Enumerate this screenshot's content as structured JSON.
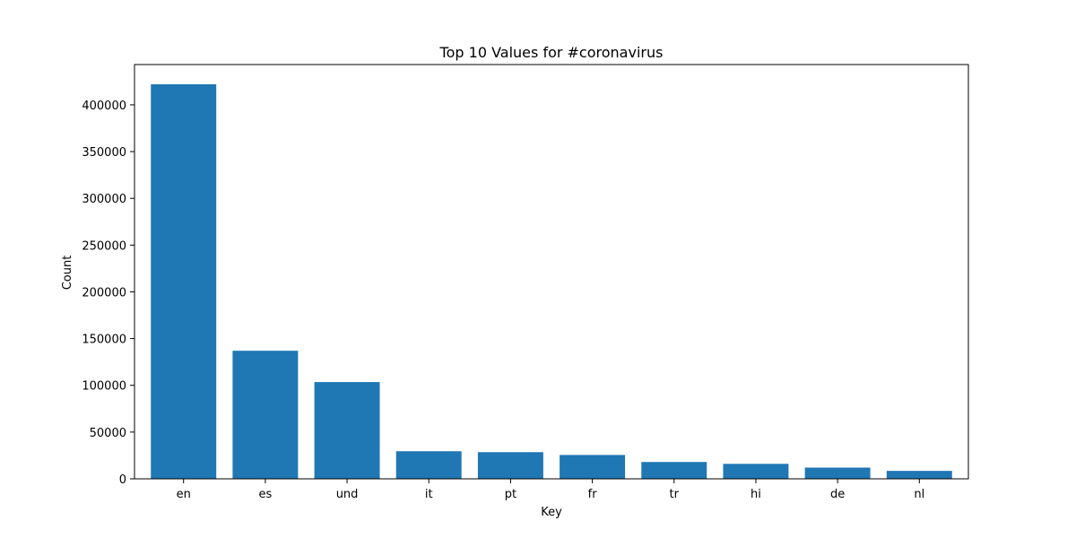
{
  "chart_data": {
    "type": "bar",
    "title": "Top 10 Values for #coronavirus",
    "xlabel": "Key",
    "ylabel": "Count",
    "categories": [
      "en",
      "es",
      "und",
      "it",
      "pt",
      "fr",
      "tr",
      "hi",
      "de",
      "nl"
    ],
    "values": [
      422000,
      137000,
      103500,
      29500,
      28500,
      25500,
      18000,
      16000,
      12000,
      8500
    ],
    "ylim": [
      0,
      443100
    ],
    "yticks": [
      0,
      50000,
      100000,
      150000,
      200000,
      250000,
      300000,
      350000,
      400000
    ],
    "grid": false,
    "bar_color": "#1f77b4"
  }
}
